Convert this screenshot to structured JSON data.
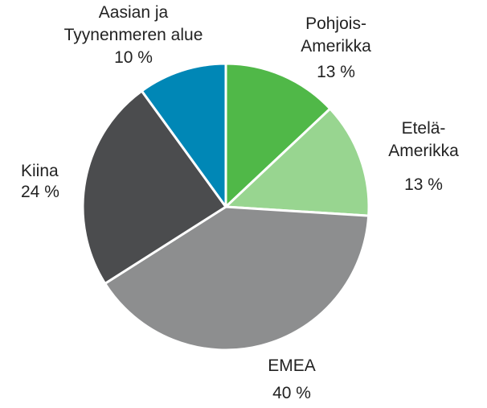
{
  "chart_data": {
    "type": "pie",
    "categories": [
      "Pohjois-\nAmerikka",
      "Etelä-\nAmerikka",
      "EMEA",
      "Kiina",
      "Aasian ja\nTyynenmeren alue"
    ],
    "values": [
      13,
      13,
      40,
      24,
      10
    ],
    "value_labels": [
      "13 %",
      "13 %",
      "40 %",
      "24 %",
      "10 %"
    ],
    "colors": [
      "#50b848",
      "#98d590",
      "#8d8e8f",
      "#4b4c4e",
      "#0087b6"
    ]
  }
}
